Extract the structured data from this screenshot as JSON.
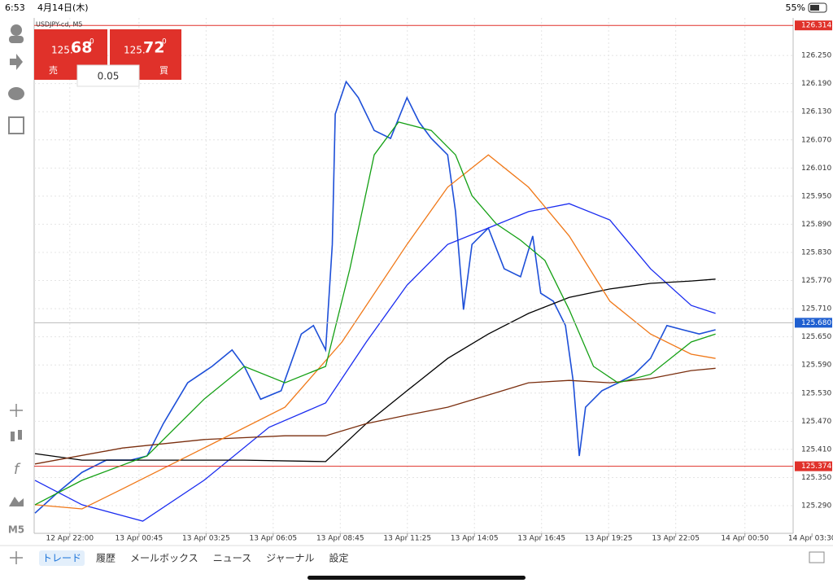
{
  "status_bar": {
    "time": "6:53",
    "date": "4月14日(木)",
    "battery": "55%"
  },
  "toolbar": {
    "timeframe": "M5"
  },
  "trade_panel": {
    "sell": {
      "big": "125.",
      "main": "68",
      "sup": "0",
      "label": "売"
    },
    "buy": {
      "big": "125.",
      "main": "72",
      "sup": "0",
      "label": "買"
    },
    "lot": "0.05"
  },
  "tabs": [
    "トレード",
    "履歴",
    "メールボックス",
    "ニュース",
    "ジャーナル",
    "設定"
  ],
  "chart_data": {
    "type": "line",
    "title": "USDJPY-cd, M5",
    "grid": true,
    "xlim": [
      -85,
      1725
    ],
    "ylim": [
      125.231,
      126.33
    ],
    "xticks": [
      {
        "value": 0,
        "label": "12 Apr 22:00"
      },
      {
        "value": 165,
        "label": "13 Apr 00:45"
      },
      {
        "value": 325,
        "label": "13 Apr 03:25"
      },
      {
        "value": 485,
        "label": "13 Apr 06:05"
      },
      {
        "value": 645,
        "label": "13 Apr 08:45"
      },
      {
        "value": 805,
        "label": "13 Apr 11:25"
      },
      {
        "value": 965,
        "label": "13 Apr 14:05"
      },
      {
        "value": 1125,
        "label": "13 Apr 16:45"
      },
      {
        "value": 1285,
        "label": "13 Apr 19:25"
      },
      {
        "value": 1445,
        "label": "13 Apr 22:05"
      },
      {
        "value": 1610,
        "label": "14 Apr 00:50"
      },
      {
        "value": 1770,
        "label": "14 Apr 03:30"
      }
    ],
    "yticks": [
      {
        "value": 125.29,
        "label": "125.290"
      },
      {
        "value": 125.35,
        "label": "125.350"
      },
      {
        "value": 125.41,
        "label": "125.410"
      },
      {
        "value": 125.47,
        "label": "125.470"
      },
      {
        "value": 125.53,
        "label": "125.530"
      },
      {
        "value": 125.59,
        "label": "125.590"
      },
      {
        "value": 125.65,
        "label": "125.650"
      },
      {
        "value": 125.71,
        "label": "125.710"
      },
      {
        "value": 125.77,
        "label": "125.770"
      },
      {
        "value": 125.83,
        "label": "125.830"
      },
      {
        "value": 125.89,
        "label": "125.890"
      },
      {
        "value": 125.95,
        "label": "125.950"
      },
      {
        "value": 126.01,
        "label": "126.010"
      },
      {
        "value": 126.07,
        "label": "126.070"
      },
      {
        "value": 126.13,
        "label": "126.130"
      },
      {
        "value": 126.19,
        "label": "126.190"
      },
      {
        "value": 126.25,
        "label": "126.250"
      }
    ],
    "price_lines": [
      {
        "value": 126.314,
        "color": "#e0312a"
      },
      {
        "value": {
          "value": 125.68,
          "label": "125.680"
        },
        "color": "#1f5fd0"
      },
      {
        "value": 125.374,
        "color": "#e0312a"
      }
    ],
    "series": [
      {
        "color": "#1d4fd8",
        "x": [
          -83,
          -29,
          29,
          87,
          145,
          184,
          223,
          281,
          339,
          387,
          416,
          455,
          504,
          552,
          581,
          610,
          626,
          633,
          659,
          688,
          726,
          765,
          804,
          833,
          862,
          901,
          920,
          939,
          959,
          998,
          1036,
          1075,
          1104,
          1123,
          1153,
          1182,
          1201,
          1215,
          1230,
          1269,
          1308,
          1346,
          1385,
          1424,
          1462,
          1501,
          1540
        ],
        "values": [
          125.274,
          125.318,
          125.361,
          125.387,
          125.387,
          125.396,
          125.465,
          125.552,
          125.587,
          125.622,
          125.587,
          125.517,
          125.535,
          125.656,
          125.674,
          125.622,
          125.847,
          126.125,
          126.194,
          126.16,
          126.09,
          126.073,
          126.16,
          126.108,
          126.073,
          126.038,
          125.917,
          125.708,
          125.847,
          125.882,
          125.795,
          125.778,
          125.865,
          125.743,
          125.726,
          125.674,
          125.552,
          125.396,
          125.5,
          125.535,
          125.552,
          125.57,
          125.604,
          125.674,
          125.665,
          125.656,
          125.665
        ]
      },
      {
        "color": "#1a2cf0",
        "x": [
          -83,
          29,
          174,
          320,
          475,
          610,
          707,
          804,
          901,
          998,
          1094,
          1191,
          1288,
          1385,
          1482,
          1540
        ],
        "values": [
          125.344,
          125.292,
          125.257,
          125.344,
          125.457,
          125.509,
          125.639,
          125.76,
          125.847,
          125.882,
          125.917,
          125.934,
          125.899,
          125.795,
          125.717,
          125.7
        ]
      },
      {
        "color": "#000000",
        "x": [
          -83,
          29,
          223,
          416,
          610,
          707,
          804,
          901,
          998,
          1094,
          1191,
          1288,
          1385,
          1482,
          1540
        ],
        "values": [
          125.401,
          125.387,
          125.387,
          125.387,
          125.384,
          125.465,
          125.535,
          125.604,
          125.656,
          125.7,
          125.734,
          125.752,
          125.764,
          125.769,
          125.773
        ]
      },
      {
        "color": "#7a2e0e",
        "x": [
          -83,
          126,
          320,
          513,
          610,
          707,
          804,
          901,
          998,
          1094,
          1191,
          1288,
          1385,
          1482,
          1540
        ],
        "values": [
          125.379,
          125.413,
          125.431,
          125.439,
          125.439,
          125.465,
          125.483,
          125.5,
          125.526,
          125.552,
          125.557,
          125.552,
          125.561,
          125.578,
          125.583
        ]
      },
      {
        "color": "#f07818",
        "x": [
          -83,
          29,
          126,
          320,
          513,
          649,
          804,
          901,
          998,
          1094,
          1191,
          1288,
          1385,
          1482,
          1540
        ],
        "values": [
          125.292,
          125.283,
          125.326,
          125.413,
          125.5,
          125.639,
          125.847,
          125.969,
          126.038,
          125.969,
          125.865,
          125.726,
          125.656,
          125.613,
          125.604
        ]
      },
      {
        "color": "#14a014",
        "x": [
          -83,
          29,
          184,
          320,
          416,
          513,
          610,
          668,
          726,
          784,
          862,
          920,
          959,
          1017,
          1075,
          1133,
          1191,
          1249,
          1307,
          1385,
          1482,
          1540
        ],
        "values": [
          125.292,
          125.344,
          125.396,
          125.517,
          125.587,
          125.552,
          125.587,
          125.795,
          126.038,
          126.108,
          126.09,
          126.038,
          125.951,
          125.891,
          125.856,
          125.813,
          125.708,
          125.587,
          125.552,
          125.57,
          125.639,
          125.656
        ]
      }
    ]
  }
}
